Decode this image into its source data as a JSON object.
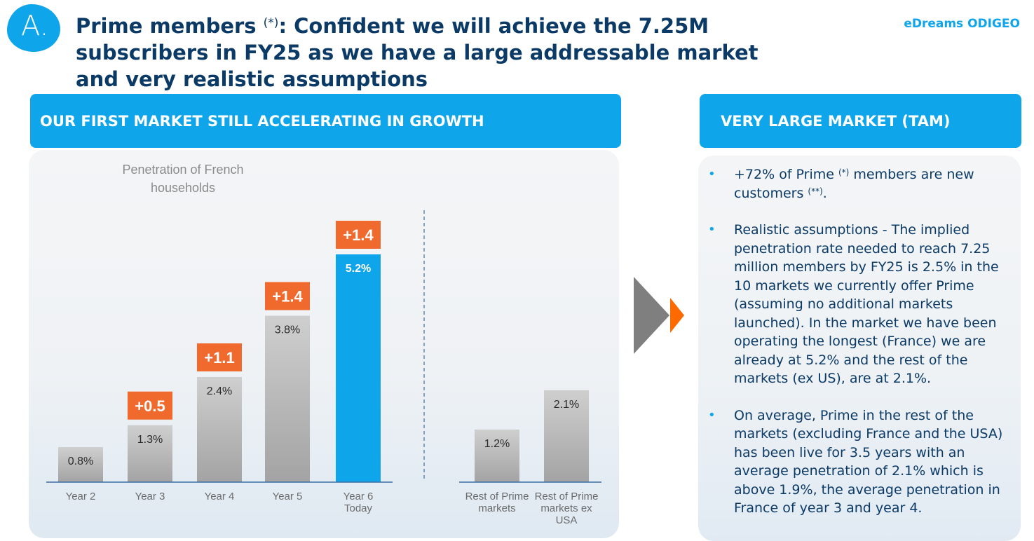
{
  "header": {
    "badge_letter": "A.",
    "title_lead": "Prime members ",
    "title_marker": "(*)",
    "title_rest": ": Confident we will achieve the 7.25M subscribers in FY25 as we have a large addressable market and very realistic assumptions",
    "brand": "eDreams ODIGEO"
  },
  "left_section": {
    "heading": "OUR FIRST MARKET STILL ACCELERATING IN GROWTH"
  },
  "right_section": {
    "heading": "VERY LARGE MARKET (TAM)",
    "bullets": [
      {
        "pre": "+72% of Prime ",
        "sup1": "(*)",
        "mid": " members are new customers ",
        "sup2": "(**)",
        "post": "."
      },
      {
        "text": "Realistic assumptions - The implied penetration rate needed to reach 7.25 million members by FY25 is 2.5% in the 10 markets we currently offer Prime (assuming no additional markets launched). In the market we have been operating the longest (France) we are already at 5.2% and the rest of the markets (ex US), are at 2.1%."
      },
      {
        "text": "On average, Prime in the rest of the markets (excluding France and the USA) has been live for 3.5 years with an average penetration of 2.1% which is above 1.9%, the average penetration in France of year 3 and year 4."
      }
    ]
  },
  "colors": {
    "accent": "#0ea5ea",
    "increment": "#ef6a2c",
    "title": "#0b3a66",
    "bar_grey": "#b8b8b8"
  },
  "chart_data": {
    "type": "bar",
    "title": "Penetration of French households",
    "ylim": [
      0,
      6.5
    ],
    "bars": [
      {
        "category": [
          "Year 2"
        ],
        "value": 0.8,
        "label": "0.8%",
        "increment": "",
        "highlight": false
      },
      {
        "category": [
          "Year 3"
        ],
        "value": 1.3,
        "label": "1.3%",
        "increment": "+0.5",
        "highlight": false
      },
      {
        "category": [
          "Year 4"
        ],
        "value": 2.4,
        "label": "2.4%",
        "increment": "+1.1",
        "highlight": false
      },
      {
        "category": [
          "Year 5"
        ],
        "value": 3.8,
        "label": "3.8%",
        "increment": "+1.4",
        "highlight": false
      },
      {
        "category": [
          "Year 6",
          "Today"
        ],
        "value": 5.2,
        "label": "5.2%",
        "increment": "+1.4",
        "highlight": true
      },
      {
        "category": [
          "Rest of Prime",
          "markets"
        ],
        "value": 1.2,
        "label": "1.2%",
        "increment": "",
        "highlight": false
      },
      {
        "category": [
          "Rest of Prime",
          "markets ex",
          "USA"
        ],
        "value": 2.1,
        "label": "2.1%",
        "increment": "",
        "highlight": false
      }
    ]
  }
}
